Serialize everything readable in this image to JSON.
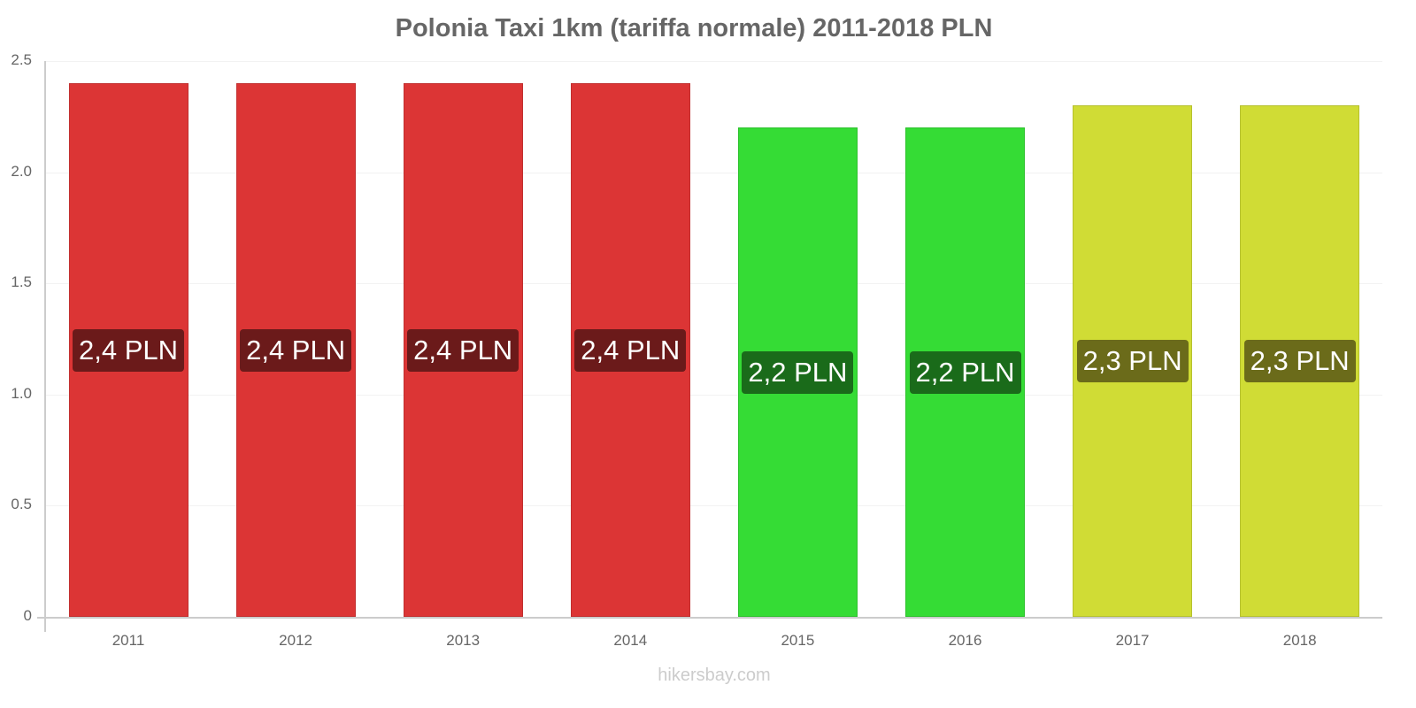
{
  "chart_data": {
    "type": "bar",
    "title": "Polonia Taxi 1km (tariffa normale) 2011-2018 PLN",
    "xlabel": "",
    "ylabel": "",
    "ylim": [
      0,
      2.5
    ],
    "yticks": [
      "0",
      "0.5",
      "1.0",
      "1.5",
      "2.0",
      "2.5"
    ],
    "grid": true,
    "categories": [
      "2011",
      "2012",
      "2013",
      "2014",
      "2015",
      "2016",
      "2017",
      "2018"
    ],
    "values": [
      2.4,
      2.4,
      2.4,
      2.4,
      2.2,
      2.2,
      2.3,
      2.3
    ],
    "data_labels": [
      "2,4 PLN",
      "2,4 PLN",
      "2,4 PLN",
      "2,4 PLN",
      "2,2 PLN",
      "2,2 PLN",
      "2,3 PLN",
      "2,3 PLN"
    ],
    "bar_colors": [
      "#dc3535",
      "#dc3535",
      "#dc3535",
      "#dc3535",
      "#35dc35",
      "#35dc35",
      "#d0dc35",
      "#d0dc35"
    ],
    "label_colors": [
      "#6b1a1a",
      "#6b1a1a",
      "#6b1a1a",
      "#6b1a1a",
      "#1a6b1a",
      "#1a6b1a",
      "#6b6b1a",
      "#6b6b1a"
    ]
  },
  "watermark": "hikersbay.com"
}
